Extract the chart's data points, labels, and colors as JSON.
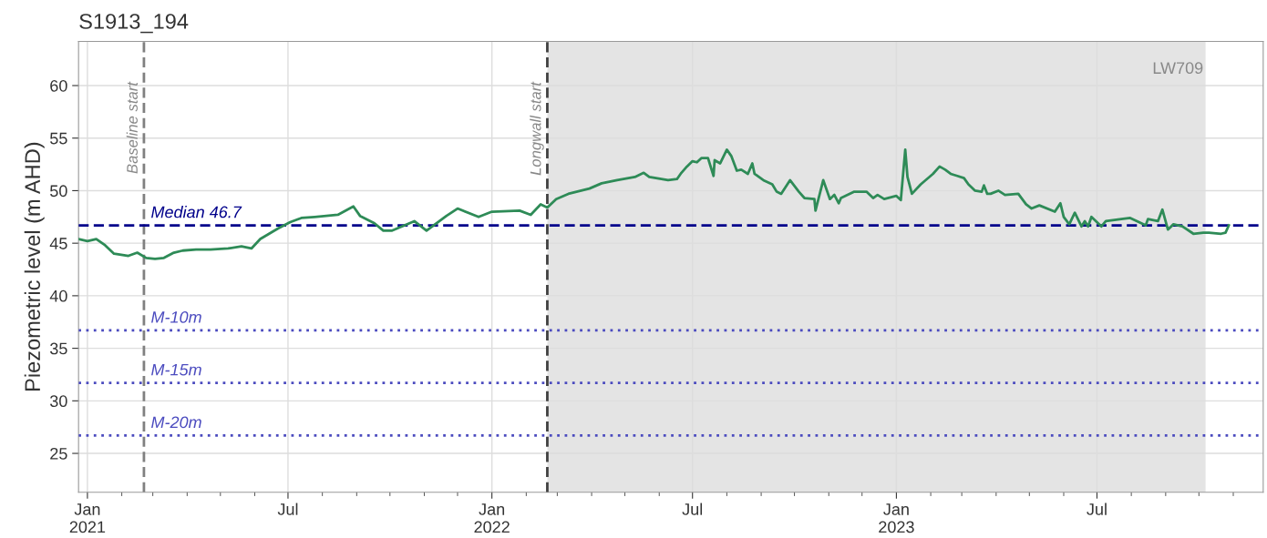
{
  "chart_data": {
    "type": "line",
    "title": "S1913_194",
    "ylabel": "Piezometric level (m AHD)",
    "xlim": [
      "2020-12-24",
      "2023-11-28"
    ],
    "ylim": [
      21.3,
      64.2
    ],
    "xticks": [
      {
        "value": "2021-01-01",
        "label": "Jan\n2021"
      },
      {
        "value": "2021-07-01",
        "label": "Jul"
      },
      {
        "value": "2022-01-01",
        "label": "Jan\n2022"
      },
      {
        "value": "2022-07-01",
        "label": "Jul"
      },
      {
        "value": "2023-01-01",
        "label": "Jan\n2023"
      },
      {
        "value": "2023-07-01",
        "label": "Jul"
      }
    ],
    "yticks": [
      25,
      30,
      35,
      40,
      45,
      50,
      55,
      60
    ],
    "grid": true,
    "marker": "none",
    "line_style": "solid",
    "ref_lines": [
      {
        "axis": "x",
        "value": "2021-02-21",
        "label": "Baseline start",
        "color": "#808080",
        "line_style": "dashed"
      },
      {
        "axis": "x",
        "value": "2022-02-20",
        "label": "Longwall start",
        "color": "#404040",
        "line_style": "dashed"
      },
      {
        "axis": "y",
        "value": 46.7,
        "label": "Median 46.7",
        "color": "#00008b",
        "line_style": "dashed"
      },
      {
        "axis": "y",
        "value": 36.7,
        "label": "M-10m",
        "color": "#4b4bbf",
        "line_style": "dotted"
      },
      {
        "axis": "y",
        "value": 31.7,
        "label": "M-15m",
        "color": "#4b4bbf",
        "line_style": "dotted"
      },
      {
        "axis": "y",
        "value": 26.7,
        "label": "M-20m",
        "color": "#4b4bbf",
        "line_style": "dotted"
      }
    ],
    "bands": [
      {
        "axis": "x",
        "from": "2022-02-20",
        "to": "2023-10-07",
        "label": "LW709",
        "color": "#e4e4e4"
      }
    ],
    "series": [
      {
        "color": "#2e8b57",
        "x": [
          "2020-12-24",
          "2021-01-01",
          "2021-01-09",
          "2021-01-17",
          "2021-01-25",
          "2021-02-07",
          "2021-02-15",
          "2021-02-23",
          "2021-03-03",
          "2021-03-11",
          "2021-03-20",
          "2021-03-28",
          "2021-04-09",
          "2021-04-22",
          "2021-05-08",
          "2021-05-20",
          "2021-05-29",
          "2021-06-06",
          "2021-06-14",
          "2021-06-22",
          "2021-07-03",
          "2021-07-13",
          "2021-07-25",
          "2021-08-15",
          "2021-08-29",
          "2021-09-04",
          "2021-09-17",
          "2021-09-25",
          "2021-10-03",
          "2021-10-23",
          "2021-11-03",
          "2021-11-21",
          "2021-12-01",
          "2021-12-20",
          "2022-01-01",
          "2022-01-26",
          "2022-02-05",
          "2022-02-14",
          "2022-02-20",
          "2022-02-28",
          "2022-03-11",
          "2022-03-30",
          "2022-04-10",
          "2022-04-24",
          "2022-05-10",
          "2022-05-18",
          "2022-05-23",
          "2022-06-09",
          "2022-06-17",
          "2022-06-21",
          "2022-06-26",
          "2022-07-01",
          "2022-07-05",
          "2022-07-09",
          "2022-07-15",
          "2022-07-20",
          "2022-07-21",
          "2022-07-26",
          "2022-08-01",
          "2022-08-05",
          "2022-08-10",
          "2022-08-14",
          "2022-08-20",
          "2022-08-24",
          "2022-08-26",
          "2022-09-03",
          "2022-09-11",
          "2022-09-15",
          "2022-09-19",
          "2022-09-27",
          "2022-10-05",
          "2022-10-10",
          "2022-10-19",
          "2022-10-20",
          "2022-10-27",
          "2022-11-02",
          "2022-11-06",
          "2022-11-10",
          "2022-11-12",
          "2022-11-24",
          "2022-12-05",
          "2022-12-11",
          "2022-12-15",
          "2022-12-21",
          "2023-01-01",
          "2023-01-05",
          "2023-01-09",
          "2023-01-11",
          "2023-01-15",
          "2023-01-23",
          "2023-02-03",
          "2023-02-09",
          "2023-02-14",
          "2023-02-19",
          "2023-02-25",
          "2023-03-03",
          "2023-03-07",
          "2023-03-13",
          "2023-03-19",
          "2023-03-21",
          "2023-03-24",
          "2023-03-27",
          "2023-04-03",
          "2023-04-09",
          "2023-04-21",
          "2023-04-28",
          "2023-05-03",
          "2023-05-10",
          "2023-05-24",
          "2023-05-29",
          "2023-06-01",
          "2023-06-06",
          "2023-06-11",
          "2023-06-17",
          "2023-06-20",
          "2023-06-23",
          "2023-06-26",
          "2023-07-05",
          "2023-07-09",
          "2023-07-23",
          "2023-07-31",
          "2023-08-14",
          "2023-08-16",
          "2023-08-25",
          "2023-08-29",
          "2023-09-03",
          "2023-09-08",
          "2023-09-16",
          "2023-09-26",
          "2023-10-05",
          "2023-10-10",
          "2023-10-21",
          "2023-10-25",
          "2023-10-28"
        ],
        "values": [
          45.4,
          45.2,
          45.4,
          44.8,
          44.0,
          43.8,
          44.1,
          43.6,
          43.5,
          43.6,
          44.1,
          44.3,
          44.4,
          44.4,
          44.5,
          44.7,
          44.5,
          45.4,
          45.9,
          46.4,
          47.0,
          47.4,
          47.5,
          47.7,
          48.5,
          47.6,
          46.9,
          46.2,
          46.2,
          47.1,
          46.2,
          47.6,
          48.3,
          47.5,
          48.0,
          48.1,
          47.7,
          48.7,
          48.4,
          49.2,
          49.7,
          50.2,
          50.7,
          51.0,
          51.3,
          51.7,
          51.3,
          51.0,
          51.1,
          51.7,
          52.3,
          52.8,
          52.7,
          53.1,
          53.1,
          51.4,
          52.9,
          52.6,
          53.9,
          53.3,
          51.9,
          52.0,
          51.6,
          52.6,
          51.6,
          51.0,
          50.6,
          49.9,
          49.7,
          51.0,
          49.9,
          49.3,
          49.2,
          48.1,
          51.0,
          49.2,
          49.6,
          48.8,
          49.3,
          49.9,
          49.9,
          49.3,
          49.6,
          49.2,
          49.5,
          49.1,
          53.9,
          51.3,
          49.7,
          50.6,
          51.6,
          52.3,
          52.0,
          51.6,
          51.4,
          51.2,
          50.6,
          50.0,
          49.9,
          50.5,
          49.7,
          49.7,
          50.0,
          49.6,
          49.7,
          48.7,
          48.3,
          48.6,
          48.0,
          48.8,
          47.5,
          46.8,
          47.9,
          46.6,
          47.1,
          46.6,
          47.5,
          46.6,
          47.1,
          47.3,
          47.4,
          46.7,
          47.3,
          47.1,
          48.2,
          46.3,
          46.8,
          46.6,
          45.9,
          46.0,
          46.0,
          45.9,
          46.0,
          46.7
        ]
      }
    ]
  }
}
